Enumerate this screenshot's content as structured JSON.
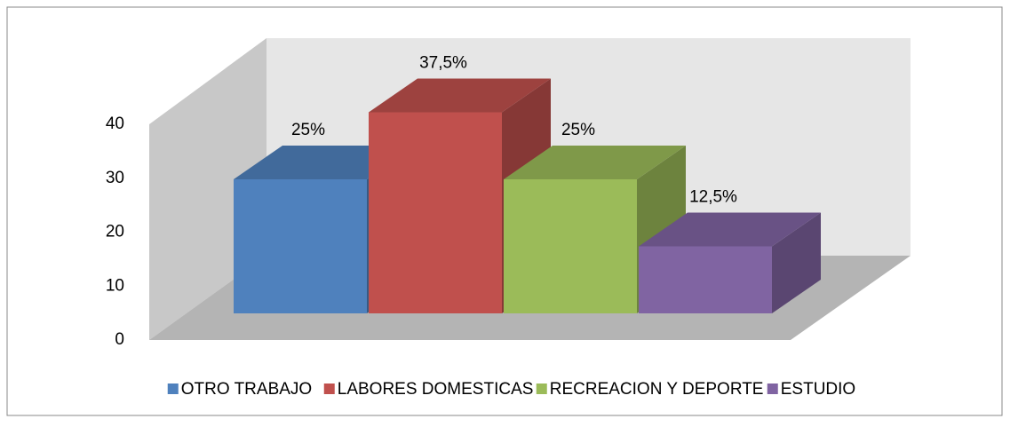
{
  "chart_data": {
    "type": "bar3d",
    "categories": [
      null
    ],
    "series": [
      {
        "name": "OTRO TRABAJO",
        "color": "#4f81bd",
        "values": [
          25
        ],
        "value_labels": [
          "25%"
        ]
      },
      {
        "name": "LABORES DOMESTICAS",
        "color": "#c0504d",
        "values": [
          37.5
        ],
        "value_labels": [
          "37,5%"
        ]
      },
      {
        "name": "RECREACION Y DEPORTE",
        "color": "#9bbb59",
        "values": [
          25
        ],
        "value_labels": [
          "25%"
        ]
      },
      {
        "name": "ESTUDIO",
        "color": "#8064a2",
        "values": [
          12.5
        ],
        "value_labels": [
          "12,5%"
        ]
      }
    ],
    "ylim": [
      0,
      40
    ],
    "yticks": [
      0,
      10,
      20,
      30,
      40
    ],
    "legend": "bottom"
  }
}
